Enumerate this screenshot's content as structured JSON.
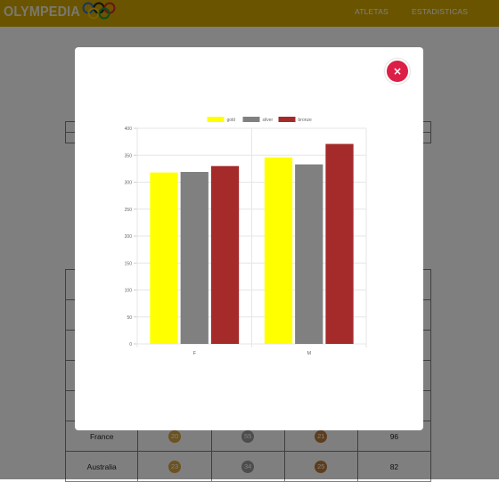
{
  "header": {
    "logo_text": "OLYMPEDIA",
    "nav": [
      "ATLETAS",
      "ESTADISTICAS"
    ],
    "brand_color": "#d4a900"
  },
  "background_table": {
    "rows": [
      {
        "country": "",
        "gold": "",
        "silver": "",
        "bronze": "",
        "total": ""
      },
      {
        "country": "",
        "gold": "",
        "silver": "",
        "bronze": "",
        "total": ""
      },
      {
        "country": "",
        "gold": "",
        "silver": "",
        "bronze": "",
        "total": ""
      },
      {
        "country": "",
        "gold": "",
        "silver": "",
        "bronze": "",
        "total": ""
      },
      {
        "country": "",
        "gold": "",
        "silver": "",
        "bronze": "",
        "total": ""
      },
      {
        "country": "France",
        "gold": "20",
        "silver": "55",
        "bronze": "21",
        "total": "96"
      },
      {
        "country": "Australia",
        "gold": "23",
        "silver": "34",
        "bronze": "25",
        "total": "82"
      }
    ]
  },
  "modal": {
    "close_label": "×",
    "close_color": "#dc1f47"
  },
  "chart_data": {
    "type": "bar",
    "categories": [
      "F",
      "M"
    ],
    "series": [
      {
        "name": "gold",
        "color": "#ffff00",
        "values": [
          318,
          346
        ]
      },
      {
        "name": "silver",
        "color": "#808080",
        "values": [
          319,
          333
        ]
      },
      {
        "name": "bronze",
        "color": "#a52a2a",
        "values": [
          330,
          371
        ]
      }
    ],
    "ylim": [
      0,
      400
    ],
    "yticks": [
      0,
      50,
      100,
      150,
      200,
      250,
      300,
      350,
      400
    ],
    "grid": true,
    "legend": "top"
  }
}
